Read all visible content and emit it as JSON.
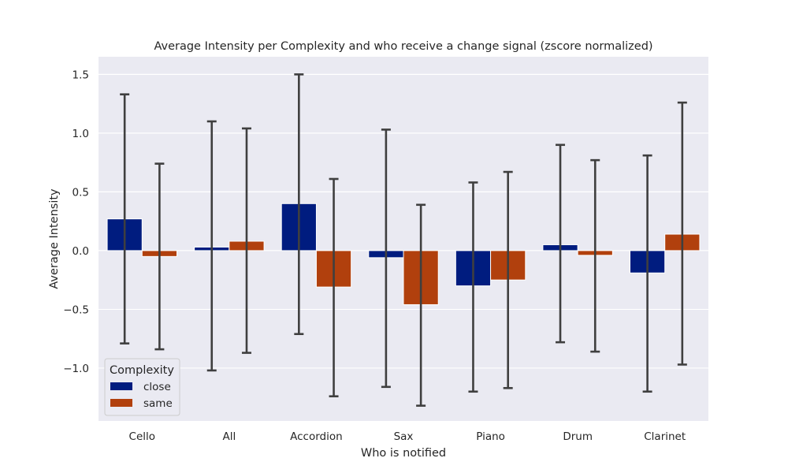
{
  "chart_data": {
    "type": "bar",
    "title": "Average Intensity per Complexity and who receive a change signal (zscore normalized)",
    "xlabel": "Who is notified",
    "ylabel": "Average Intensity",
    "categories": [
      "Cello",
      "All",
      "Accordion",
      "Sax",
      "Piano",
      "Drum",
      "Clarinet"
    ],
    "ylim": [
      -1.45,
      1.65
    ],
    "yticks": [
      1.5,
      1.0,
      0.5,
      0.0,
      -0.5,
      -1.0
    ],
    "ytick_labels": [
      "1.5",
      "1.0",
      "0.5",
      "0.0",
      "−0.5",
      "−1.0"
    ],
    "grid": true,
    "legend": {
      "title": "Complexity",
      "placement": "lower-left"
    },
    "series": [
      {
        "name": "close",
        "color": "#001c7f",
        "values": [
          0.27,
          0.03,
          0.4,
          -0.06,
          -0.3,
          0.05,
          -0.19
        ],
        "ci_low": [
          -0.79,
          -1.02,
          -0.71,
          -1.16,
          -1.2,
          -0.78,
          -1.2
        ],
        "ci_high": [
          1.33,
          1.1,
          1.5,
          1.03,
          0.58,
          0.9,
          0.81
        ]
      },
      {
        "name": "same",
        "color": "#b1400d",
        "values": [
          -0.05,
          0.08,
          -0.31,
          -0.46,
          -0.25,
          -0.04,
          0.14
        ],
        "ci_low": [
          -0.84,
          -0.87,
          -1.24,
          -1.32,
          -1.17,
          -0.86,
          -0.97
        ],
        "ci_high": [
          0.74,
          1.04,
          0.61,
          0.39,
          0.67,
          0.77,
          1.26
        ]
      }
    ],
    "colors": {
      "plot_background": "#eaeaf2",
      "grid": "#ffffff",
      "errorbar": "#3f3f3f"
    }
  }
}
